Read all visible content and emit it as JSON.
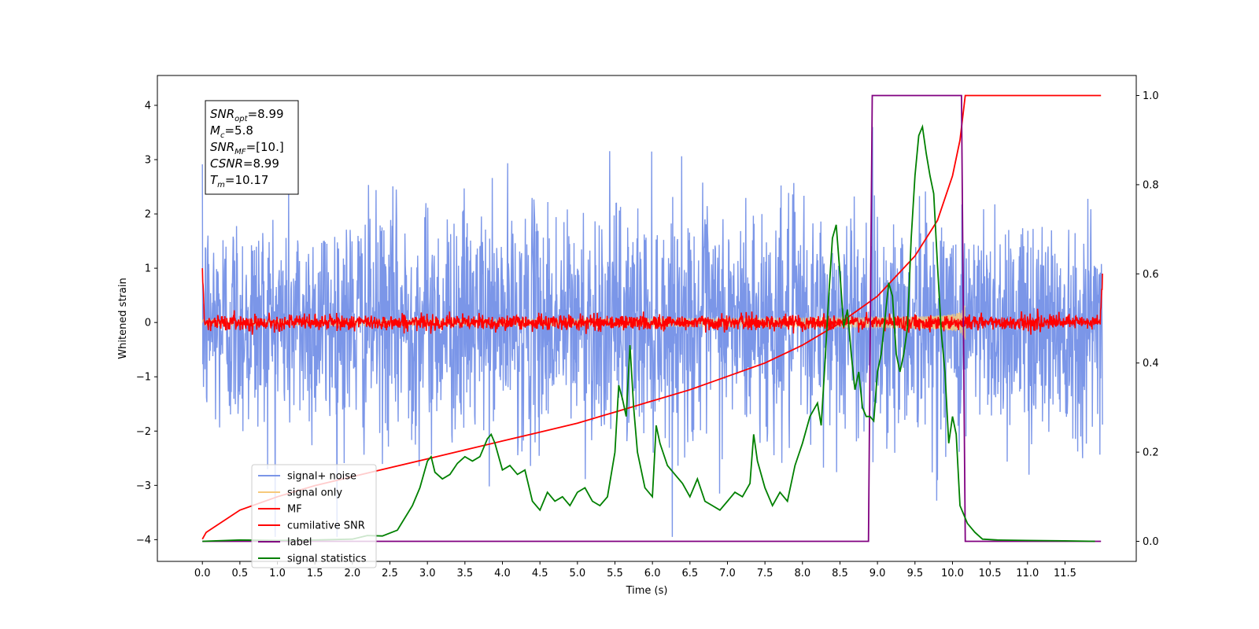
{
  "chart_data": {
    "type": "line",
    "xlabel": "Time (s)",
    "ylabel": "Whitened strain",
    "xlim": [
      -0.6,
      12.45
    ],
    "ylim": [
      -4.4,
      4.55
    ],
    "y2lim": [
      -0.045,
      1.045
    ],
    "xticks": [
      "0.0",
      "0.5",
      "1.0",
      "1.5",
      "2.0",
      "2.5",
      "3.0",
      "3.5",
      "4.0",
      "4.5",
      "5.0",
      "5.5",
      "6.0",
      "6.5",
      "7.0",
      "7.5",
      "8.0",
      "8.5",
      "9.0",
      "9.5",
      "10.0",
      "10.5",
      "11.0",
      "11.5"
    ],
    "yticks": [
      "−4",
      "−3",
      "−2",
      "−1",
      "0",
      "1",
      "2",
      "3",
      "4"
    ],
    "y2ticks": [
      "0.0",
      "0.2",
      "0.4",
      "0.6",
      "0.8",
      "1.0"
    ],
    "grid": false,
    "legend_position": "lower-left",
    "annotation": {
      "lines": [
        {
          "base": "SNR",
          "sub": "opt",
          "value": "=8.99"
        },
        {
          "base": "M",
          "sub": "c",
          "value": "=5.8"
        },
        {
          "base": "SNR",
          "sub": "MF",
          "value": "=[10.]"
        },
        {
          "base": "CSNR",
          "sub": "",
          "value": "=8.99"
        },
        {
          "base": "T",
          "sub": "m",
          "value": "=10.17"
        }
      ]
    },
    "series": [
      {
        "name": "signal+ noise",
        "color": "#7b96e8",
        "axis": "left",
        "kind": "noise",
        "t_start": 0.0,
        "t_end": 12.0,
        "amplitude_envelope": 3.0
      },
      {
        "name": "signal only",
        "color": "#f6c97b",
        "axis": "left",
        "kind": "chirp",
        "t_start": 0.0,
        "t_end": 10.17,
        "amplitude_at_end": 0.75
      },
      {
        "name": "MF",
        "color": "#ff0000",
        "axis": "left",
        "kind": "mf",
        "t_start": 0.0,
        "t_end": 12.0,
        "amplitude_envelope": 0.15,
        "edge_values": [
          1.0,
          0.9
        ]
      },
      {
        "name": "cumilative SNR",
        "color": "#ff0000",
        "axis": "right",
        "x": [
          0.0,
          0.05,
          0.5,
          1.0,
          1.5,
          2.0,
          2.5,
          3.0,
          3.5,
          4.0,
          4.5,
          5.0,
          5.5,
          6.0,
          6.5,
          7.0,
          7.5,
          8.0,
          8.5,
          9.0,
          9.5,
          9.8,
          10.0,
          10.1,
          10.17,
          10.5,
          11.0,
          11.5,
          11.98
        ],
        "y": [
          0.005,
          0.02,
          0.07,
          0.1,
          0.125,
          0.145,
          0.165,
          0.185,
          0.205,
          0.225,
          0.245,
          0.265,
          0.29,
          0.315,
          0.34,
          0.37,
          0.4,
          0.44,
          0.49,
          0.55,
          0.64,
          0.72,
          0.82,
          0.9,
          1.0,
          1.0,
          1.0,
          1.0,
          1.0
        ]
      },
      {
        "name": "label",
        "color": "#800080",
        "axis": "right",
        "x": [
          0.0,
          8.88,
          8.93,
          10.12,
          10.17,
          11.98
        ],
        "y": [
          0.0,
          0.0,
          1.0,
          1.0,
          0.0,
          0.0
        ]
      },
      {
        "name": "signal statistics",
        "color": "#008000",
        "axis": "right",
        "x": [
          0.0,
          0.5,
          1.0,
          1.5,
          2.0,
          2.2,
          2.4,
          2.6,
          2.8,
          2.9,
          3.0,
          3.05,
          3.1,
          3.2,
          3.3,
          3.4,
          3.5,
          3.6,
          3.7,
          3.8,
          3.85,
          3.9,
          4.0,
          4.1,
          4.2,
          4.3,
          4.4,
          4.5,
          4.6,
          4.7,
          4.8,
          4.9,
          5.0,
          5.1,
          5.2,
          5.3,
          5.4,
          5.5,
          5.55,
          5.6,
          5.65,
          5.7,
          5.75,
          5.8,
          5.9,
          6.0,
          6.05,
          6.1,
          6.2,
          6.3,
          6.4,
          6.5,
          6.6,
          6.7,
          6.8,
          6.9,
          7.0,
          7.1,
          7.2,
          7.3,
          7.35,
          7.4,
          7.5,
          7.6,
          7.7,
          7.8,
          7.9,
          8.0,
          8.1,
          8.2,
          8.25,
          8.3,
          8.35,
          8.4,
          8.45,
          8.5,
          8.55,
          8.6,
          8.65,
          8.7,
          8.75,
          8.8,
          8.85,
          8.9,
          8.95,
          9.0,
          9.05,
          9.1,
          9.15,
          9.2,
          9.25,
          9.3,
          9.35,
          9.4,
          9.45,
          9.5,
          9.55,
          9.6,
          9.65,
          9.7,
          9.75,
          9.8,
          9.85,
          9.9,
          9.95,
          10.0,
          10.05,
          10.1,
          10.15,
          10.2,
          10.3,
          10.4,
          10.6,
          11.0,
          11.5,
          11.9
        ],
        "y": [
          0.0,
          0.003,
          0.002,
          0.003,
          0.005,
          0.013,
          0.012,
          0.025,
          0.08,
          0.12,
          0.18,
          0.19,
          0.155,
          0.14,
          0.15,
          0.175,
          0.19,
          0.18,
          0.19,
          0.23,
          0.24,
          0.22,
          0.16,
          0.17,
          0.15,
          0.16,
          0.09,
          0.07,
          0.11,
          0.09,
          0.1,
          0.08,
          0.11,
          0.12,
          0.09,
          0.08,
          0.1,
          0.2,
          0.35,
          0.32,
          0.28,
          0.44,
          0.3,
          0.2,
          0.12,
          0.1,
          0.26,
          0.22,
          0.17,
          0.15,
          0.13,
          0.1,
          0.14,
          0.09,
          0.08,
          0.07,
          0.09,
          0.11,
          0.1,
          0.13,
          0.24,
          0.18,
          0.12,
          0.08,
          0.11,
          0.09,
          0.17,
          0.22,
          0.28,
          0.31,
          0.26,
          0.4,
          0.55,
          0.68,
          0.71,
          0.6,
          0.48,
          0.52,
          0.42,
          0.34,
          0.38,
          0.3,
          0.28,
          0.28,
          0.27,
          0.38,
          0.42,
          0.5,
          0.58,
          0.55,
          0.42,
          0.38,
          0.42,
          0.48,
          0.68,
          0.82,
          0.91,
          0.93,
          0.87,
          0.82,
          0.78,
          0.62,
          0.47,
          0.38,
          0.22,
          0.28,
          0.24,
          0.08,
          0.06,
          0.04,
          0.02,
          0.005,
          0.003,
          0.002,
          0.001,
          0.0
        ]
      }
    ]
  }
}
